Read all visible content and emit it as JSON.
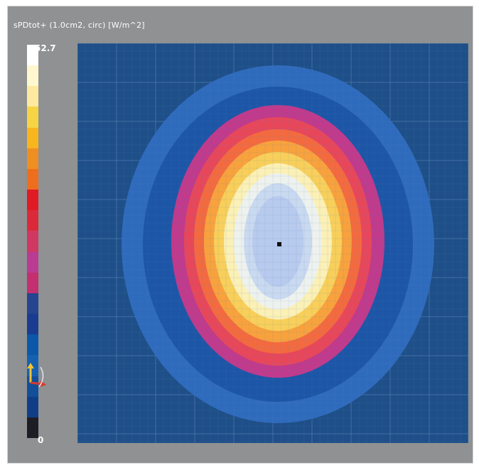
{
  "viewer": {
    "quantity_label": "sPDtot+ (1.0cm2, circ) [W/m^2]"
  },
  "legend": {
    "max_label": "52.7",
    "min_label": "0",
    "colors": [
      "#ffffff",
      "#fff7cf",
      "#fde9a0",
      "#f5d543",
      "#f7b51e",
      "#ef8f22",
      "#ee6e1d",
      "#e01b25",
      "#da2a3a",
      "#cf3862",
      "#b93b92",
      "#c32f6f",
      "#27448e",
      "#1a3c90",
      "#0c57a9",
      "#1660b0",
      "#134e98",
      "#0f3e86",
      "#1d1d26"
    ]
  },
  "field": {
    "levels": [
      {
        "color": "#2f6bbc"
      },
      {
        "color": "#1d56a7"
      },
      {
        "color": "#c13a8b"
      },
      {
        "color": "#e8475a"
      },
      {
        "color": "#f46a3f"
      },
      {
        "color": "#f8a23d"
      },
      {
        "color": "#f8cf5a"
      },
      {
        "color": "#fbf0b5"
      },
      {
        "color": "#eef2ee"
      },
      {
        "color": "#c9d9ef"
      },
      {
        "color": "#b8cbee"
      }
    ],
    "background_color": "#1e4f88",
    "grid_color": "#5d82b4"
  }
}
